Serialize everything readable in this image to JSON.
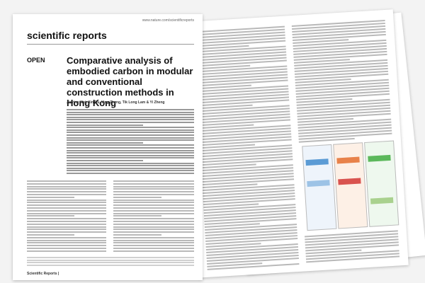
{
  "front_page": {
    "url": "www.nature.com/scientificreports",
    "journal": "scientific reports",
    "label": "OPEN",
    "title": "Comparative analysis of embodied carbon in modular and conventional construction methods in Hong Kong",
    "authors": "Jiaying Wei, Xin Qu, Ying Zheng, Tik Long Lam & Yi Zheng",
    "footer": "Scientific Reports |"
  }
}
